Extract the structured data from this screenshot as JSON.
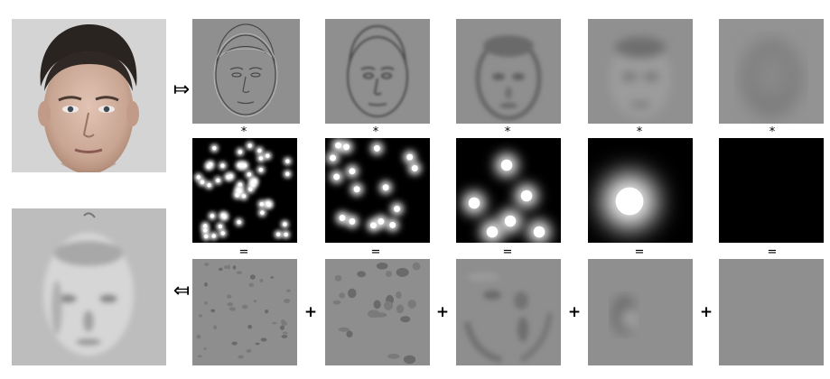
{
  "operators": {
    "convolve": "*",
    "equals": "=",
    "plus": "+",
    "decompose_arrow": "⤇",
    "recompose_arrow": "⤆"
  },
  "colors": {
    "panel_gray": "#8f8f8f",
    "photo_bg": "#d4d4d4",
    "map_bg": "#000000",
    "blob": "#ffffff"
  },
  "diagram": {
    "columns": 5,
    "rows": [
      "filtered-face-scales",
      "spike-maps",
      "reconstruction-components"
    ],
    "blob_counts": [
      48,
      16,
      6,
      1,
      0
    ]
  }
}
